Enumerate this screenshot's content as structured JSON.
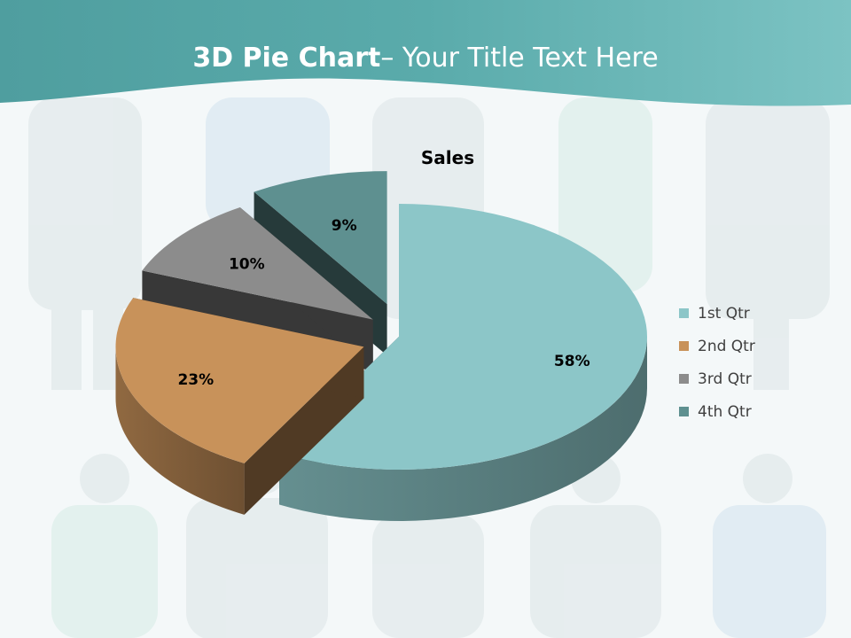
{
  "slide": {
    "title_bold": "3D Pie Chart",
    "title_rest": "– Your Title Text Here"
  },
  "chart_data": {
    "type": "pie",
    "title": "Sales",
    "categories": [
      "1st Qtr",
      "2nd Qtr",
      "3rd Qtr",
      "4th Qtr"
    ],
    "values": [
      58,
      23,
      10,
      9
    ],
    "data_labels": [
      "58%",
      "23%",
      "10%",
      "9%"
    ],
    "colors": [
      "#8cc6c8",
      "#c8925a",
      "#8c8c8c",
      "#5e9090"
    ],
    "legend_position": "right",
    "exploded": true,
    "three_d": true
  },
  "colors": {
    "header_band": "#5aa8a8",
    "header_band_light": "#7cc0c0"
  }
}
